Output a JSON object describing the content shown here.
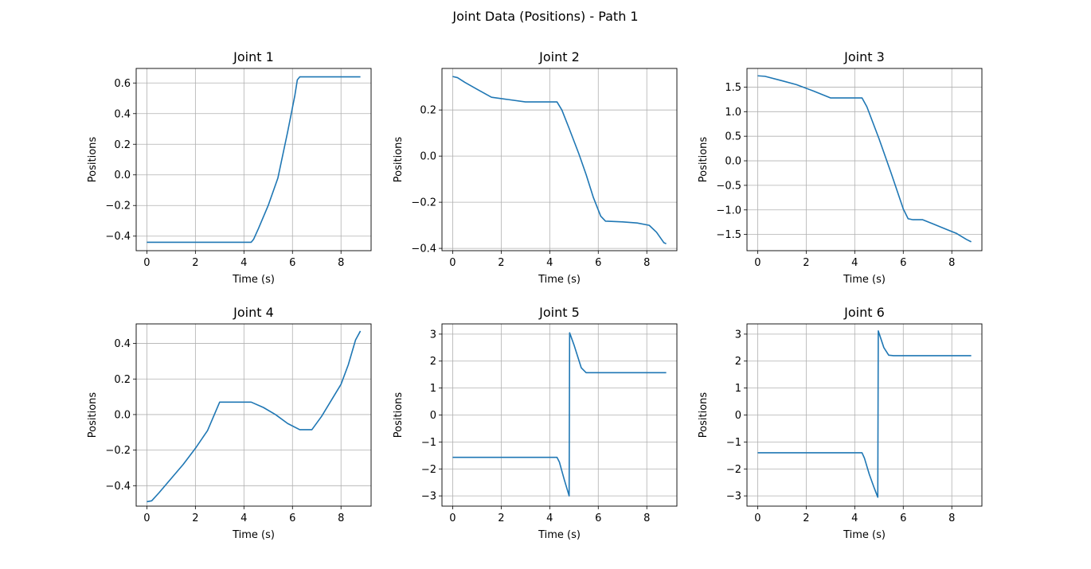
{
  "figure": {
    "title": "Joint Data (Positions) - Path 1"
  },
  "colors": {
    "line": "#1f77b4",
    "grid": "#b0b0b0",
    "axes": "#000000"
  },
  "chart_data": [
    {
      "type": "line",
      "title": "Joint 1",
      "xlabel": "Time (s)",
      "ylabel": "Positions",
      "xlim": [
        -0.44,
        9.24
      ],
      "ylim": [
        -0.495,
        0.695
      ],
      "xticks": [
        0,
        2,
        4,
        6,
        8
      ],
      "xtick_labels": [
        "0",
        "2",
        "4",
        "6",
        "8"
      ],
      "yticks": [
        -0.4,
        -0.2,
        0.0,
        0.2,
        0.4,
        0.6
      ],
      "ytick_labels": [
        "−0.4",
        "−0.2",
        "0.0",
        "0.2",
        "0.4",
        "0.6"
      ],
      "grid": true,
      "series": [
        {
          "x": [
            0,
            2,
            4,
            4.3,
            4.4,
            4.6,
            5.0,
            5.4,
            5.8,
            6.1,
            6.2,
            6.3,
            7,
            8,
            8.8
          ],
          "y": [
            -0.44,
            -0.44,
            -0.44,
            -0.44,
            -0.42,
            -0.35,
            -0.2,
            -0.02,
            0.28,
            0.52,
            0.62,
            0.64,
            0.64,
            0.64,
            0.64
          ]
        }
      ]
    },
    {
      "type": "line",
      "title": "Joint 2",
      "xlabel": "Time (s)",
      "ylabel": "Positions",
      "xlim": [
        -0.44,
        9.24
      ],
      "ylim": [
        -0.41,
        0.38
      ],
      "xticks": [
        0,
        2,
        4,
        6,
        8
      ],
      "xtick_labels": [
        "0",
        "2",
        "4",
        "6",
        "8"
      ],
      "yticks": [
        -0.4,
        -0.2,
        0.0,
        0.2
      ],
      "ytick_labels": [
        "−0.4",
        "−0.2",
        "0.0",
        "0.2"
      ],
      "grid": true,
      "series": [
        {
          "x": [
            0,
            0.2,
            0.5,
            1.0,
            1.6,
            2.3,
            3.0,
            3.5,
            4.0,
            4.3,
            4.5,
            4.8,
            5.2,
            5.5,
            5.8,
            6.1,
            6.3,
            7.0,
            7.6,
            8.1,
            8.4,
            8.7,
            8.8
          ],
          "y": [
            0.345,
            0.34,
            0.32,
            0.29,
            0.255,
            0.245,
            0.235,
            0.235,
            0.235,
            0.235,
            0.2,
            0.12,
            0.01,
            -0.08,
            -0.18,
            -0.26,
            -0.282,
            -0.285,
            -0.29,
            -0.3,
            -0.33,
            -0.375,
            -0.38
          ]
        }
      ]
    },
    {
      "type": "line",
      "title": "Joint 3",
      "xlabel": "Time (s)",
      "ylabel": "Positions",
      "xlim": [
        -0.44,
        9.24
      ],
      "ylim": [
        -1.83,
        1.88
      ],
      "xticks": [
        0,
        2,
        4,
        6,
        8
      ],
      "xtick_labels": [
        "0",
        "2",
        "4",
        "6",
        "8"
      ],
      "yticks": [
        -1.5,
        -1.0,
        -0.5,
        0.0,
        0.5,
        1.0,
        1.5
      ],
      "ytick_labels": [
        "−1.5",
        "−1.0",
        "−0.5",
        "0.0",
        "0.5",
        "1.0",
        "1.5"
      ],
      "grid": true,
      "series": [
        {
          "x": [
            0,
            0.3,
            1.0,
            1.6,
            2.3,
            3.0,
            3.5,
            4.0,
            4.3,
            4.5,
            5.0,
            5.5,
            6.0,
            6.2,
            6.4,
            6.8,
            7.2,
            7.8,
            8.2,
            8.6,
            8.8
          ],
          "y": [
            1.73,
            1.72,
            1.63,
            1.55,
            1.42,
            1.28,
            1.28,
            1.28,
            1.28,
            1.1,
            0.45,
            -0.25,
            -0.98,
            -1.18,
            -1.2,
            -1.2,
            -1.28,
            -1.4,
            -1.48,
            -1.6,
            -1.65
          ]
        }
      ]
    },
    {
      "type": "line",
      "title": "Joint 4",
      "xlabel": "Time (s)",
      "ylabel": "Positions",
      "xlim": [
        -0.44,
        9.24
      ],
      "ylim": [
        -0.515,
        0.51
      ],
      "xticks": [
        0,
        2,
        4,
        6,
        8
      ],
      "xtick_labels": [
        "0",
        "2",
        "4",
        "6",
        "8"
      ],
      "yticks": [
        -0.4,
        -0.2,
        0.0,
        0.2,
        0.4
      ],
      "ytick_labels": [
        "−0.4",
        "−0.2",
        "0.0",
        "0.2",
        "0.4"
      ],
      "grid": true,
      "series": [
        {
          "x": [
            0,
            0.2,
            0.5,
            1.0,
            1.5,
            2.0,
            2.5,
            3.0,
            3.5,
            4.0,
            4.3,
            4.8,
            5.3,
            5.8,
            6.3,
            6.6,
            6.8,
            7.2,
            7.6,
            8.0,
            8.3,
            8.6,
            8.8
          ],
          "y": [
            -0.49,
            -0.485,
            -0.44,
            -0.36,
            -0.28,
            -0.19,
            -0.09,
            0.07,
            0.07,
            0.07,
            0.07,
            0.04,
            0.0,
            -0.05,
            -0.085,
            -0.085,
            -0.085,
            -0.01,
            0.08,
            0.17,
            0.28,
            0.42,
            0.47
          ]
        }
      ]
    },
    {
      "type": "line",
      "title": "Joint 5",
      "xlabel": "Time (s)",
      "ylabel": "Positions",
      "xlim": [
        -0.44,
        9.24
      ],
      "ylim": [
        -3.38,
        3.38
      ],
      "xticks": [
        0,
        2,
        4,
        6,
        8
      ],
      "xtick_labels": [
        "0",
        "2",
        "4",
        "6",
        "8"
      ],
      "yticks": [
        -3,
        -2,
        -1,
        0,
        1,
        2,
        3
      ],
      "ytick_labels": [
        "−3",
        "−2",
        "−1",
        "0",
        "1",
        "2",
        "3"
      ],
      "grid": true,
      "series": [
        {
          "x": [
            0,
            2,
            4,
            4.3,
            4.4,
            4.6,
            4.8,
            4.82,
            5.0,
            5.3,
            5.5,
            6,
            7,
            8,
            8.8
          ],
          "y": [
            -1.57,
            -1.57,
            -1.57,
            -1.57,
            -1.75,
            -2.4,
            -3.0,
            3.05,
            2.6,
            1.75,
            1.57,
            1.57,
            1.57,
            1.57,
            1.57
          ]
        }
      ]
    },
    {
      "type": "line",
      "title": "Joint 6",
      "xlabel": "Time (s)",
      "ylabel": "Positions",
      "xlim": [
        -0.44,
        9.24
      ],
      "ylim": [
        -3.38,
        3.38
      ],
      "xticks": [
        0,
        2,
        4,
        6,
        8
      ],
      "xtick_labels": [
        "0",
        "2",
        "4",
        "6",
        "8"
      ],
      "yticks": [
        -3,
        -2,
        -1,
        0,
        1,
        2,
        3
      ],
      "ytick_labels": [
        "−3",
        "−2",
        "−1",
        "0",
        "1",
        "2",
        "3"
      ],
      "grid": true,
      "series": [
        {
          "x": [
            0,
            2,
            4,
            4.3,
            4.4,
            4.6,
            4.8,
            4.95,
            4.97,
            5.2,
            5.4,
            5.6,
            6,
            7,
            8,
            8.8
          ],
          "y": [
            -1.4,
            -1.4,
            -1.4,
            -1.4,
            -1.6,
            -2.2,
            -2.7,
            -3.05,
            3.12,
            2.5,
            2.22,
            2.2,
            2.2,
            2.2,
            2.2,
            2.2
          ]
        }
      ]
    }
  ]
}
